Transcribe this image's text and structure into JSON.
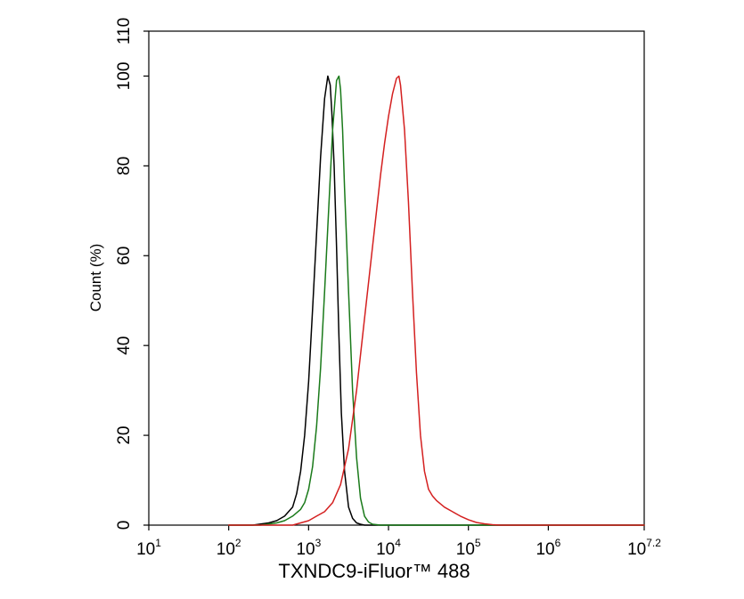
{
  "chart_data": {
    "type": "line",
    "title": "",
    "xlabel": "TXNDC9-iFluor™ 488",
    "ylabel": "Count  (%)",
    "x_scale": "log",
    "xlim": [
      10,
      15848931.92
    ],
    "ylim": [
      0,
      110
    ],
    "grid": false,
    "x_ticks": [
      {
        "base": "10",
        "exp": "1",
        "value": 10
      },
      {
        "base": "10",
        "exp": "2",
        "value": 100
      },
      {
        "base": "10",
        "exp": "3",
        "value": 1000
      },
      {
        "base": "10",
        "exp": "4",
        "value": 10000
      },
      {
        "base": "10",
        "exp": "5",
        "value": 100000
      },
      {
        "base": "10",
        "exp": "6",
        "value": 1000000
      },
      {
        "base": "10",
        "exp": "7.2",
        "value": 15848931.92
      }
    ],
    "y_ticks": [
      "0",
      "20",
      "40",
      "60",
      "80",
      "100",
      "110"
    ],
    "series": [
      {
        "color": "#000000",
        "x": [
          100,
          200,
          316,
          398,
          501,
          631,
          708,
          794,
          891,
          1000,
          1122,
          1259,
          1413,
          1585,
          1738,
          1862,
          1950,
          2089,
          2239,
          2399,
          2570,
          2818,
          3162,
          3548,
          3981,
          4467,
          5012,
          6310,
          10000,
          100000,
          15848931.92
        ],
        "y": [
          0,
          0,
          0.5,
          1,
          2,
          4,
          7,
          12,
          20,
          32,
          48,
          65,
          82,
          95,
          100,
          98,
          92,
          80,
          62,
          42,
          25,
          12,
          4,
          1.5,
          0.5,
          0.2,
          0,
          0,
          0,
          0,
          0
        ]
      },
      {
        "color": "#1a7a1a",
        "x": [
          100,
          251,
          398,
          501,
          631,
          794,
          891,
          1000,
          1122,
          1259,
          1413,
          1585,
          1778,
          1995,
          2239,
          2399,
          2512,
          2661,
          2818,
          3162,
          3548,
          3981,
          4467,
          5012,
          5623,
          6310,
          7943,
          10000,
          100000,
          15848931.92
        ],
        "y": [
          0,
          0,
          0.5,
          1,
          2,
          3.5,
          5,
          8,
          13,
          22,
          35,
          52,
          70,
          88,
          99,
          100,
          97,
          88,
          75,
          52,
          30,
          15,
          6,
          2,
          0.7,
          0.2,
          0,
          0,
          0,
          0
        ]
      },
      {
        "color": "#d42020",
        "x": [
          100,
          631,
          794,
          1000,
          1259,
          1585,
          1995,
          2512,
          3162,
          3981,
          5012,
          6310,
          7943,
          8913,
          10000,
          11220,
          12590,
          13490,
          14130,
          15850,
          17780,
          19950,
          22390,
          25120,
          28180,
          31620,
          35480,
          39810,
          50120,
          63100,
          79430,
          100000,
          125900,
          158500,
          199500,
          251200,
          316200,
          1000000,
          15848931.92
        ],
        "y": [
          0,
          0,
          0.5,
          1,
          2,
          3,
          5,
          9,
          17,
          30,
          46,
          62,
          78,
          85,
          91,
          96,
          99.5,
          100,
          98,
          88,
          72,
          52,
          34,
          20,
          12,
          8,
          6.5,
          5.5,
          4,
          3,
          2,
          1.2,
          0.6,
          0.3,
          0.1,
          0,
          0,
          0,
          0
        ]
      }
    ]
  }
}
